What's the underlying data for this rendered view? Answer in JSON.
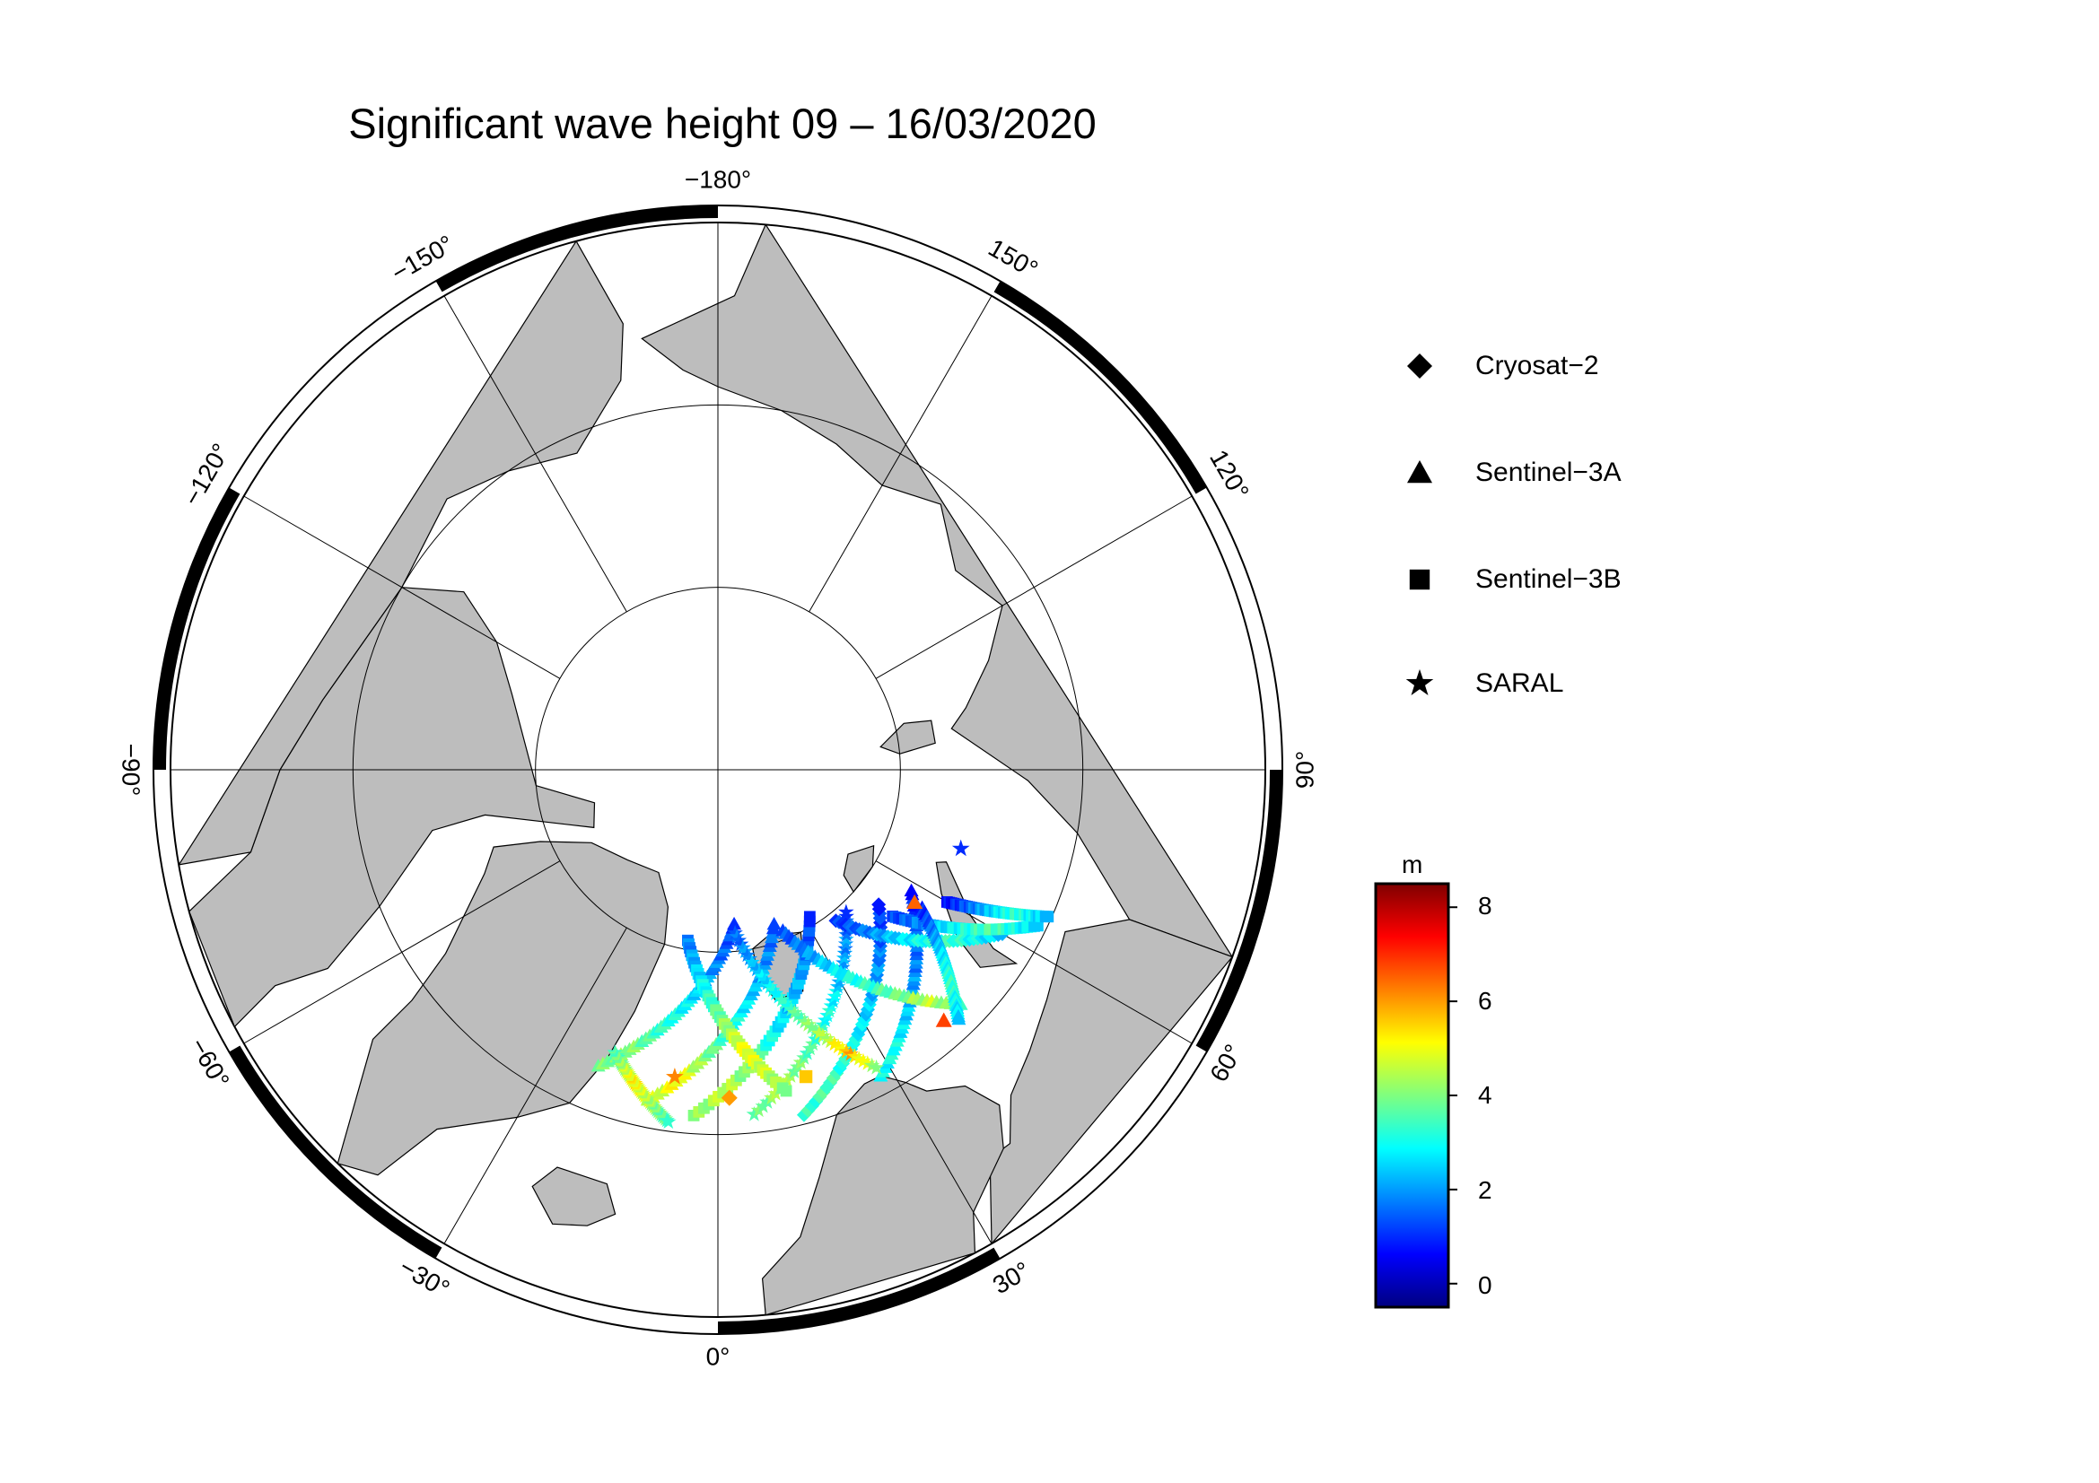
{
  "title": "Significant wave height 09 – 16/03/2020",
  "map": {
    "projection": "north-polar-stereographic",
    "colors": {
      "land": "#bdbdbd",
      "ocean": "#ffffff",
      "frame": "#000000"
    },
    "longitude_labels": [
      {
        "lon": 180,
        "text": "−180°"
      },
      {
        "lon": -150,
        "text": "−150°"
      },
      {
        "lon": 150,
        "text": "150°"
      },
      {
        "lon": -120,
        "text": "−120°"
      },
      {
        "lon": 120,
        "text": "120°"
      },
      {
        "lon": -90,
        "text": "−90°"
      },
      {
        "lon": 90,
        "text": "90°"
      },
      {
        "lon": -60,
        "text": "−60°"
      },
      {
        "lon": 60,
        "text": "60°"
      },
      {
        "lon": -30,
        "text": "−30°"
      },
      {
        "lon": 30,
        "text": "30°"
      },
      {
        "lon": 0,
        "text": "0°"
      }
    ]
  },
  "legend": [
    {
      "symbol": "diamond-icon",
      "label": "Cryosat−2"
    },
    {
      "symbol": "triangle-icon",
      "label": "Sentinel−3A"
    },
    {
      "symbol": "square-icon",
      "label": "Sentinel−3B"
    },
    {
      "symbol": "star-icon",
      "label": "SARAL"
    }
  ],
  "colorbar": {
    "unit": "m",
    "min": -0.5,
    "max": 8.5,
    "ticks": [
      {
        "value": 8,
        "label": "8"
      },
      {
        "value": 6,
        "label": "6"
      },
      {
        "value": 4,
        "label": "4"
      },
      {
        "value": 2,
        "label": "2"
      },
      {
        "value": 0,
        "label": "0"
      }
    ],
    "colormap": [
      "#00007f",
      "#0000ff",
      "#007fff",
      "#00ffff",
      "#7fff7f",
      "#ffff00",
      "#ff7f00",
      "#ff0000",
      "#7f0000"
    ]
  },
  "chart_data": {
    "type": "scatter",
    "title": "Significant wave height 09 – 16/03/2020",
    "value_label": "m",
    "value_range": [
      -0.5,
      8.5
    ],
    "series": [
      {
        "name": "Cryosat−2",
        "marker": "diamond"
      },
      {
        "name": "Sentinel−3A",
        "marker": "triangle"
      },
      {
        "name": "Sentinel−3B",
        "marker": "square"
      },
      {
        "name": "SARAL",
        "marker": "star"
      }
    ],
    "tracks": [
      {
        "series": "Sentinel−3A",
        "from": [
          72.5,
          -22
        ],
        "to": [
          81.5,
          6
        ],
        "values": [
          3.8,
          4.2,
          3.5,
          3.1,
          2.6,
          2.0,
          1.5,
          1.2
        ]
      },
      {
        "series": "Sentinel−3A",
        "from": [
          71.5,
          -12
        ],
        "to": [
          81,
          20
        ],
        "values": [
          4.5,
          5.2,
          4.1,
          3.3,
          2.8,
          2.2,
          1.8,
          1.4
        ]
      },
      {
        "series": "Sentinel−3B",
        "from": [
          71,
          -4
        ],
        "to": [
          80.5,
          32
        ],
        "values": [
          4.0,
          4.6,
          3.9,
          3.0,
          2.4,
          2.2,
          1.6,
          1.1
        ]
      },
      {
        "series": "SARAL",
        "from": [
          71,
          6
        ],
        "to": [
          79.5,
          42
        ],
        "values": [
          3.6,
          4.4,
          3.8,
          3.2,
          2.9,
          2.1,
          1.9,
          1.2
        ]
      },
      {
        "series": "Cryosat−2",
        "from": [
          70.5,
          14
        ],
        "to": [
          78.5,
          50
        ],
        "values": [
          3.2,
          3.6,
          3.0,
          2.7,
          2.3,
          1.9,
          1.4,
          1.0
        ]
      },
      {
        "series": "Sentinel−3A",
        "from": [
          71,
          28
        ],
        "to": [
          77.5,
          58
        ],
        "values": [
          2.8,
          3.1,
          2.6,
          2.2,
          1.8,
          1.5,
          1.1,
          0.8
        ]
      },
      {
        "series": "Sentinel−3B",
        "from": [
          80.5,
          -10
        ],
        "to": [
          72,
          12
        ],
        "values": [
          1.6,
          2.2,
          2.9,
          3.6,
          4.3,
          5.0,
          4.6,
          4.1
        ]
      },
      {
        "series": "SARAL",
        "from": [
          81,
          6
        ],
        "to": [
          71.5,
          28
        ],
        "values": [
          1.4,
          2.0,
          2.6,
          3.1,
          3.8,
          4.4,
          5.8,
          4.2
        ]
      },
      {
        "series": "Sentinel−3A",
        "from": [
          80.5,
          22
        ],
        "to": [
          71.5,
          46
        ],
        "values": [
          1.2,
          1.8,
          2.4,
          3.0,
          3.4,
          3.9,
          4.6,
          3.6
        ]
      },
      {
        "series": "Cryosat−2",
        "from": [
          79.5,
          38
        ],
        "to": [
          72,
          60
        ],
        "values": [
          1.0,
          1.5,
          2.0,
          2.6,
          3.1,
          3.4,
          2.9,
          2.4
        ]
      },
      {
        "series": "Sentinel−3B",
        "from": [
          77.5,
          50
        ],
        "to": [
          70.5,
          64
        ],
        "values": [
          1.1,
          1.6,
          2.1,
          2.8,
          3.2,
          3.6,
          3.0,
          2.6
        ]
      },
      {
        "series": "SARAL",
        "from": [
          73.5,
          -20
        ],
        "to": [
          70.5,
          -8
        ],
        "values": [
          3.4,
          4.0,
          4.6,
          5.2,
          4.8,
          4.4,
          3.9,
          3.5
        ]
      },
      {
        "series": "Sentinel−3A",
        "from": [
          76.5,
          56
        ],
        "to": [
          71,
          44
        ],
        "values": [
          0.8,
          1.4,
          2.0,
          2.6,
          3.0,
          3.4,
          2.9,
          2.5
        ]
      },
      {
        "series": "Sentinel−3B",
        "from": [
          75.5,
          60
        ],
        "to": [
          70.2,
          66
        ],
        "values": [
          0.6,
          1.1,
          1.7,
          2.3,
          2.9,
          3.3,
          2.8,
          2.4
        ]
      }
    ],
    "points": [
      {
        "series": "Sentinel−3A",
        "lat": 71.5,
        "lon": 42,
        "value": 6.8
      },
      {
        "series": "SARAL",
        "lat": 73,
        "lon": -8,
        "value": 6.2
      },
      {
        "series": "Cryosat−2",
        "lat": 72,
        "lon": 2,
        "value": 6.0
      },
      {
        "series": "Sentinel−3B",
        "lat": 72.5,
        "lon": 16,
        "value": 5.6
      },
      {
        "series": "SARAL",
        "lat": 76,
        "lon": 72,
        "value": 1.0
      },
      {
        "series": "Sentinel−3A",
        "lat": 77,
        "lon": 56,
        "value": 6.5
      }
    ]
  }
}
